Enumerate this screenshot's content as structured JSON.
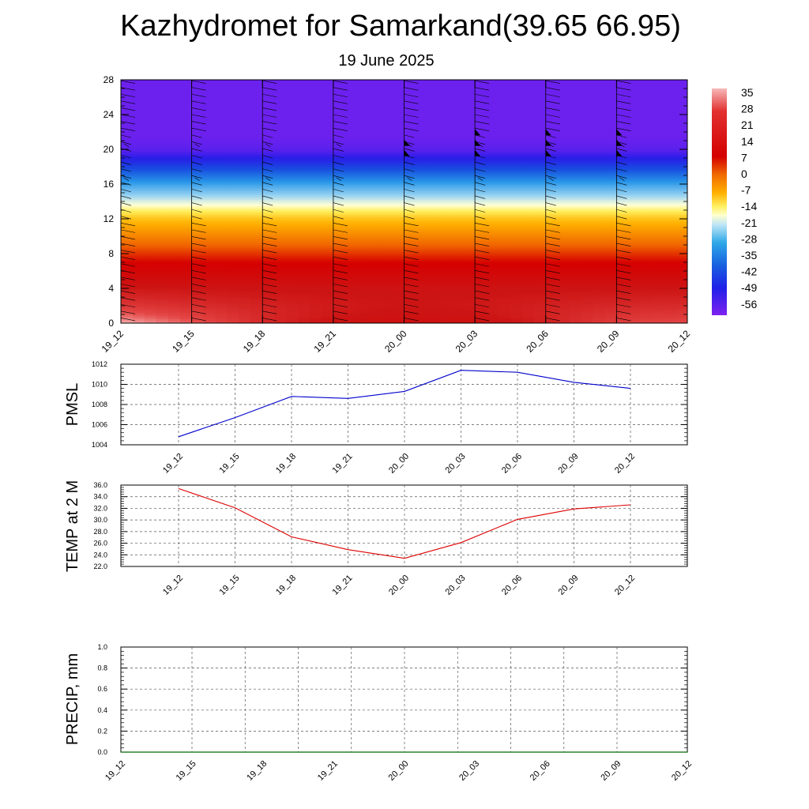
{
  "header": {
    "title": "Kazhydromet for Samarkand(39.65 66.95)",
    "subtitle": "19 June 2025"
  },
  "chart_data": [
    {
      "type": "heatmap",
      "x_ticks": [
        "19_12",
        "19_15",
        "19_18",
        "19_21",
        "20_00",
        "20_03",
        "20_06",
        "20_09",
        "20_12"
      ],
      "y_ticks": [
        "0",
        "4",
        "8",
        "12",
        "16",
        "20",
        "24",
        "28"
      ],
      "ylim": [
        0,
        28
      ],
      "colorbar_labels": [
        "35",
        "28",
        "21",
        "14",
        "7",
        "0",
        "-7",
        "-14",
        "-21",
        "-28",
        "-35",
        "-42",
        "-49",
        "-56"
      ],
      "color_range": [
        -60,
        38
      ],
      "surface_temps": [
        38,
        34,
        30,
        27,
        25,
        26,
        29,
        32,
        33
      ],
      "lapse_layers": [
        {
          "z": 0,
          "t": 32
        },
        {
          "z": 4,
          "t": 28
        },
        {
          "z": 8,
          "t": 12
        },
        {
          "z": 12,
          "t": -4
        },
        {
          "z": 13.5,
          "t": -14
        },
        {
          "z": 16,
          "t": -30
        },
        {
          "z": 18,
          "t": -44
        },
        {
          "z": 20,
          "t": -56
        },
        {
          "z": 21.5,
          "t": -58
        },
        {
          "z": 28,
          "t": -58
        }
      ],
      "colors": {
        "hot": "#d40000",
        "cold": "#7d22f0"
      }
    },
    {
      "type": "line",
      "ylabel": "PMSL",
      "x": [
        "19_12",
        "19_15",
        "19_18",
        "19_21",
        "20_00",
        "20_03",
        "20_06",
        "20_09",
        "20_12"
      ],
      "y_ticks": [
        "1004",
        "1006",
        "1008",
        "1010",
        "1012"
      ],
      "ylim": [
        1004,
        1012
      ],
      "series": [
        {
          "values": [
            1004.8,
            1006.7,
            1008.8,
            1008.6,
            1009.3,
            1011.4,
            1011.2,
            1010.2,
            1009.6
          ],
          "color": "#0000cc"
        }
      ]
    },
    {
      "type": "line",
      "ylabel": "TEMP at 2 M",
      "x": [
        "19_12",
        "19_15",
        "19_18",
        "19_21",
        "20_00",
        "20_03",
        "20_06",
        "20_09",
        "20_12"
      ],
      "y_ticks": [
        "22.0",
        "24.0",
        "26.0",
        "28.0",
        "30.0",
        "32.0",
        "34.0",
        "36.0"
      ],
      "ylim": [
        22,
        36
      ],
      "series": [
        {
          "values": [
            35.4,
            32.1,
            27.1,
            24.9,
            23.4,
            26.1,
            30.1,
            31.9,
            32.6
          ],
          "color": "#dd0000"
        }
      ]
    },
    {
      "type": "line",
      "ylabel": "PRECIP, mm",
      "x": [
        "19_12",
        "19_15",
        "19_18",
        "19_21",
        "20_00",
        "20_03",
        "20_06",
        "20_09",
        "20_12"
      ],
      "y_ticks": [
        "0.0",
        "0.2",
        "0.4",
        "0.6",
        "0.8",
        "1.0"
      ],
      "ylim": [
        0,
        1
      ],
      "series": [
        {
          "values": [
            0,
            0,
            0,
            0,
            0,
            0,
            0,
            0,
            0
          ],
          "color": "#006600"
        }
      ]
    }
  ]
}
